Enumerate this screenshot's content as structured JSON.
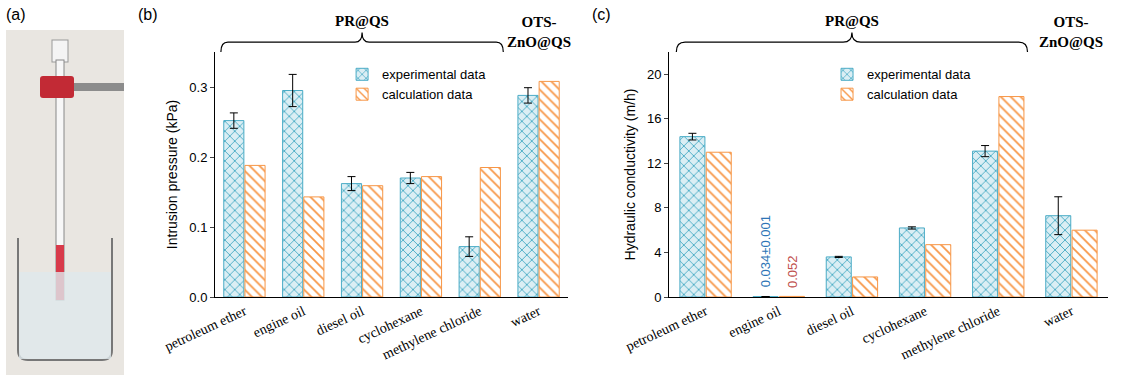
{
  "photo": {
    "panel_label": "(a)"
  },
  "chart_data": [
    {
      "type": "bar",
      "panel_label": "(b)",
      "y_label": "Intrusion pressure (kPa)",
      "categories": [
        "petroleum ether",
        "engine oil",
        "diesel oil",
        "cyclohexane",
        "methylene chloride",
        "water"
      ],
      "series": [
        {
          "name": "experimental data",
          "color": "#4bacc6",
          "values": [
            0.252,
            0.295,
            0.162,
            0.17,
            0.072,
            0.288
          ],
          "errors": [
            0.011,
            0.023,
            0.01,
            0.008,
            0.014,
            0.011
          ]
        },
        {
          "name": "calculation data",
          "color": "#f79646",
          "values": [
            0.188,
            0.143,
            0.159,
            0.172,
            0.185,
            0.308
          ]
        }
      ],
      "groups": [
        {
          "text": "PR@QS",
          "categories": [
            "petroleum ether",
            "engine oil",
            "diesel oil",
            "cyclohexane",
            "methylene chloride"
          ]
        },
        {
          "text": "OTS-ZnO@QS",
          "categories": [
            "water"
          ]
        }
      ],
      "ylim": [
        0,
        0.35
      ],
      "yticks": [
        {
          "value": 0,
          "label": "0.0"
        },
        0.1,
        0.2,
        0.3
      ],
      "grid": false,
      "legend": "top-center"
    },
    {
      "type": "bar",
      "panel_label": "(c)",
      "y_label": "Hydraulic conductivity (m/h)",
      "categories": [
        "petroleum ether",
        "engine oil",
        "diesel oil",
        "cyclohexane",
        "methylene chloride",
        "water"
      ],
      "series": [
        {
          "name": "experimental data",
          "color": "#4bacc6",
          "values": [
            14.4,
            0.034,
            3.6,
            6.2,
            13.1,
            7.3
          ],
          "errors": [
            0.3,
            0.001,
            0.05,
            0.1,
            0.5,
            1.7
          ]
        },
        {
          "name": "calculation data",
          "color": "#f79646",
          "values": [
            13.0,
            0.052,
            1.8,
            4.7,
            18.0,
            6.0
          ]
        }
      ],
      "groups": [
        {
          "text": "PR@QS",
          "categories": [
            "petroleum ether",
            "engine oil",
            "diesel oil",
            "cyclohexane",
            "methylene chloride"
          ]
        },
        {
          "text": "OTS-ZnO@QS",
          "categories": [
            "water"
          ]
        }
      ],
      "annotations": [
        {
          "text": "0.034±0.001",
          "category": "engine oil",
          "series": "experimental data",
          "color": "#2e75b6"
        },
        {
          "text": "0.052",
          "category": "engine oil",
          "series": "calculation data",
          "color": "#c0504d"
        }
      ],
      "ylim": [
        0,
        22
      ],
      "yticks": [
        0,
        4,
        8,
        12,
        16,
        20
      ],
      "grid": false,
      "legend": "top-center"
    }
  ]
}
